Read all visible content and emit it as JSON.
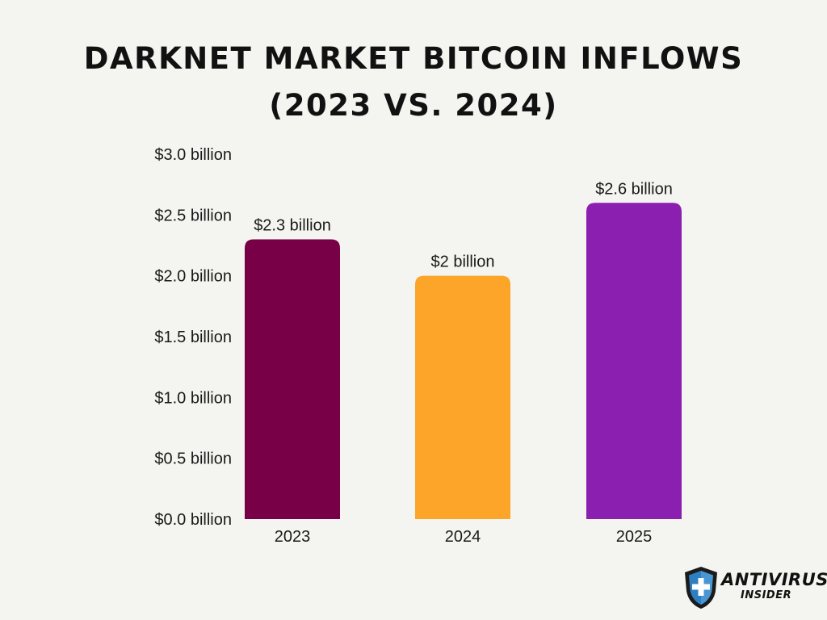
{
  "title": {
    "line1": "Darknet Market Bitcoin Inflows",
    "line2": "(2023 vs. 2024)"
  },
  "chart_data": {
    "type": "bar",
    "categories": [
      "2023",
      "2024",
      "2025"
    ],
    "values": [
      2.3,
      2.0,
      2.6
    ],
    "data_labels": [
      "$2.3 billion",
      "$2 billion",
      "$2.6 billion"
    ],
    "colors": [
      "#780046",
      "#fca528",
      "#8a1fb0"
    ],
    "ylim": [
      0,
      3.0
    ],
    "yticks": [
      {
        "value": 0.0,
        "label": "$0.0 billion"
      },
      {
        "value": 0.5,
        "label": "$0.5 billion"
      },
      {
        "value": 1.0,
        "label": "$1.0 billion"
      },
      {
        "value": 1.5,
        "label": "$1.5 billion"
      },
      {
        "value": 2.0,
        "label": "$2.0 billion"
      },
      {
        "value": 2.5,
        "label": "$2.5 billion"
      },
      {
        "value": 3.0,
        "label": "$3.0 billion"
      }
    ],
    "xlabel": "",
    "ylabel": "",
    "grid": false,
    "legend": "none"
  },
  "logo": {
    "text_top": "ANTIVIRUS",
    "text_bottom": "INSIDER",
    "icon": "shield-cross-icon",
    "shield_color": "#2e7fc1"
  }
}
